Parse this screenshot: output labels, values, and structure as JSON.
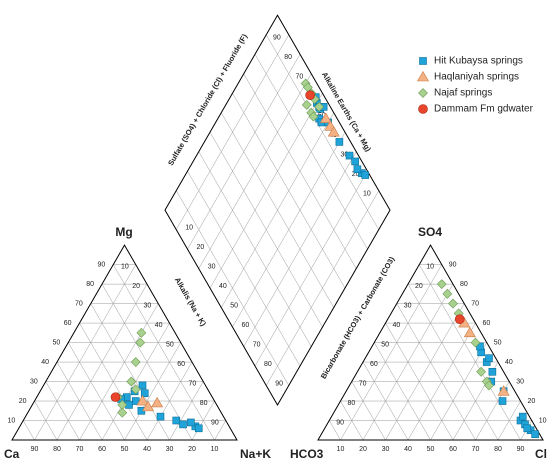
{
  "chart_data": {
    "type": "piper",
    "corner_labels": {
      "mg": "Mg",
      "ca": "Ca",
      "nak": "Na+K",
      "hco3": "HCO3",
      "so4": "SO4",
      "cl": "Cl"
    },
    "axis_labels": {
      "alkalis": "Alkalis (Na + K)",
      "bicarbonate": "Bicarbonate (HCO3) + Carbonate (CO3)",
      "sulfate": "Sulfate (SO4) + Chloride (Cl) + Fluoride (F)",
      "alkaline_earths": "Alkaline Earths (Ca + Mg)"
    },
    "mg_ticks": [
      10,
      20,
      30,
      40,
      50,
      60,
      70,
      80,
      90
    ],
    "nak_ticks": [
      10,
      20,
      30,
      40,
      50,
      60,
      70,
      80,
      90
    ],
    "ca_ticks": [
      10,
      20,
      30,
      40,
      50,
      60,
      70,
      80,
      90
    ],
    "so4_ticks": [
      10,
      20,
      30,
      40,
      50,
      60,
      70,
      80,
      90
    ],
    "cl_ticks": [
      10,
      20,
      30,
      40,
      50,
      60,
      70,
      80,
      90
    ],
    "hco3_ticks": [
      10,
      20,
      30,
      40,
      50,
      60,
      70,
      80,
      90
    ],
    "diamond_cam_ticks": [
      10,
      20,
      30,
      40,
      50,
      60,
      70,
      80,
      90
    ],
    "diamond_so4cl_ticks": [
      10,
      20,
      30,
      40,
      50,
      60,
      70,
      80,
      90
    ],
    "diamond_nak_ticks": [
      10,
      20,
      30,
      40,
      50,
      60,
      70,
      80,
      90
    ],
    "legend": "upper right",
    "series": [
      {
        "name": "Hit Kubaysa springs",
        "color": "#1fa3d8",
        "marker": "square",
        "cations": [
          [
            22,
            40
          ],
          [
            25,
            42
          ],
          [
            20,
            45
          ],
          [
            18,
            43
          ],
          [
            24,
            47
          ],
          [
            28,
            44
          ],
          [
            15,
            50
          ],
          [
            21,
            38
          ],
          [
            12,
            60
          ],
          [
            10,
            68
          ],
          [
            8,
            72
          ],
          [
            7,
            78
          ],
          [
            9,
            75
          ],
          [
            6,
            80
          ]
        ],
        "anions": [
          [
            45,
            50
          ],
          [
            40,
            55
          ],
          [
            30,
            62
          ],
          [
            35,
            60
          ],
          [
            20,
            72
          ],
          [
            42,
            55
          ],
          [
            25,
            70
          ],
          [
            48,
            48
          ],
          [
            10,
            85
          ],
          [
            8,
            88
          ],
          [
            12,
            85
          ],
          [
            5,
            92
          ],
          [
            6,
            90
          ],
          [
            3,
            95
          ]
        ]
      },
      {
        "name": "Haqlaniyah springs",
        "color": "#f4b183",
        "marker": "triangle",
        "cations": [
          [
            20,
            48
          ],
          [
            17,
            52
          ],
          [
            19,
            55
          ]
        ],
        "anions": [
          [
            55,
            40
          ],
          [
            60,
            35
          ],
          [
            25,
            70
          ]
        ]
      },
      {
        "name": "Najaf springs",
        "color": "#a9d18e",
        "marker": "diamond",
        "cations": [
          [
            55,
            30
          ],
          [
            50,
            32
          ],
          [
            40,
            35
          ],
          [
            30,
            38
          ],
          [
            26,
            42
          ],
          [
            18,
            40
          ],
          [
            22,
            36
          ],
          [
            14,
            42
          ]
        ],
        "anions": [
          [
            80,
            15
          ],
          [
            75,
            20
          ],
          [
            70,
            25
          ],
          [
            65,
            30
          ],
          [
            50,
            45
          ],
          [
            35,
            55
          ],
          [
            30,
            60
          ],
          [
            28,
            62
          ]
        ]
      },
      {
        "name": "Dammam Fm gdwater",
        "color": "#e8452c",
        "marker": "circle",
        "cations": [
          [
            22,
            35
          ]
        ],
        "anions": [
          [
            62,
            32
          ]
        ]
      }
    ]
  }
}
